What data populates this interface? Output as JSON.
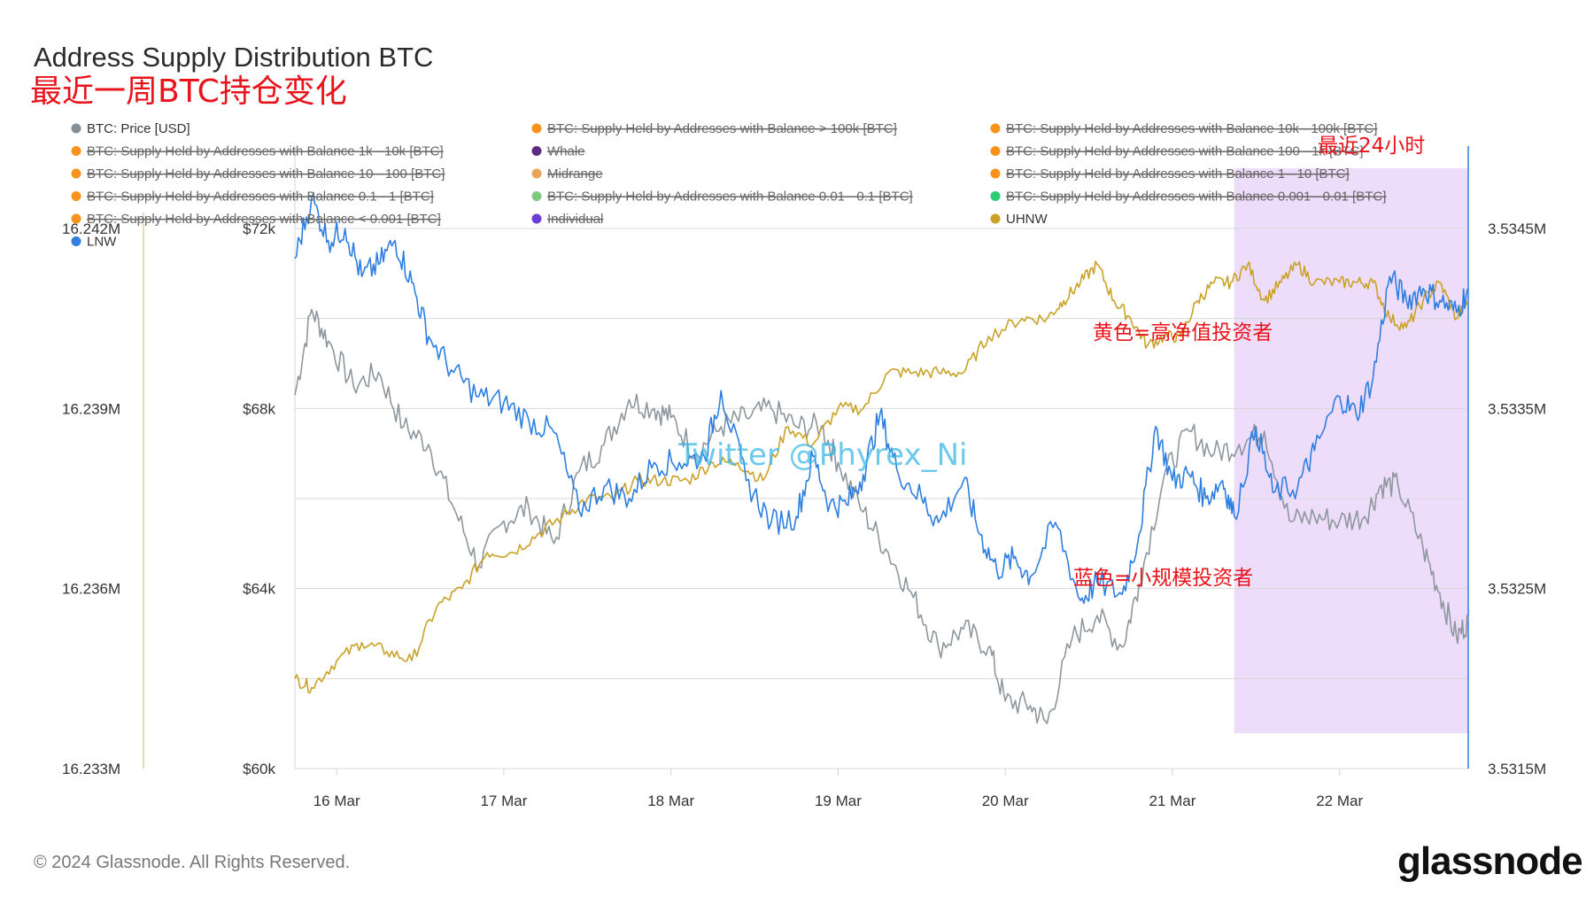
{
  "header": {
    "title": "Address Supply Distribution BTC",
    "subtitle": "最近一周BTC持仓变化"
  },
  "legend": [
    {
      "label": "BTC: Price [USD]",
      "color": "#888f95",
      "active": true
    },
    {
      "label": "BTC: Supply Held by Addresses with Balance > 100k [BTC]",
      "color": "#f7931a",
      "active": false
    },
    {
      "label": "BTC: Supply Held by Addresses with Balance 10k - 100k [BTC]",
      "color": "#f7931a",
      "active": false
    },
    {
      "label": "BTC: Supply Held by Addresses with Balance 1k - 10k [BTC]",
      "color": "#f7931a",
      "active": false
    },
    {
      "label": "Whale",
      "color": "#5b2c83",
      "active": false
    },
    {
      "label": "BTC: Supply Held by Addresses with Balance 100 - 1k [BTC]",
      "color": "#f7931a",
      "active": false
    },
    {
      "label": "BTC: Supply Held by Addresses with Balance 10 - 100 [BTC]",
      "color": "#f7931a",
      "active": false
    },
    {
      "label": "Midrange",
      "color": "#e9a65a",
      "active": false
    },
    {
      "label": "BTC: Supply Held by Addresses with Balance 1 - 10 [BTC]",
      "color": "#f7931a",
      "active": false
    },
    {
      "label": "BTC: Supply Held by Addresses with Balance 0.1 - 1 [BTC]",
      "color": "#f7931a",
      "active": false
    },
    {
      "label": "BTC: Supply Held by Addresses with Balance 0.01 - 0.1 [BTC]",
      "color": "#7fc97f",
      "active": false
    },
    {
      "label": "BTC: Supply Held by Addresses with Balance 0.001 - 0.01 [BTC]",
      "color": "#2ecc71",
      "active": false
    },
    {
      "label": "BTC: Supply Held by Addresses with Balance < 0.001 [BTC]",
      "color": "#f7931a",
      "active": false
    },
    {
      "label": "Individual",
      "color": "#6a3fd6",
      "active": false
    },
    {
      "label": "UHNW",
      "color": "#c9a227",
      "active": true
    },
    {
      "label": "LNW",
      "color": "#2f7fe0",
      "active": true
    }
  ],
  "annotations": {
    "last24h": "最近24小时",
    "yellow_note": "黄色=高净值投资者",
    "blue_note": "蓝色=小规模投资者",
    "watermark": "Twitter @Phyrex_Ni"
  },
  "footer": {
    "copyright": "© 2024 Glassnode. All Rights Reserved.",
    "brand": "glassnode"
  },
  "colors": {
    "price": "#8e979d",
    "uhnw": "#c9a227",
    "lnw": "#2f7fe0",
    "highlight": "#eedcfb",
    "grid": "#d8d8d8",
    "axis_accent": "#e8c9a0"
  },
  "chart_data": {
    "type": "line",
    "x_start_day": 15.75,
    "x_end_day": 22.77,
    "highlight_range_days": [
      21.37,
      22.77
    ],
    "xticks": [
      {
        "day": 16,
        "label": "16 Mar"
      },
      {
        "day": 17,
        "label": "17 Mar"
      },
      {
        "day": 18,
        "label": "18 Mar"
      },
      {
        "day": 19,
        "label": "19 Mar"
      },
      {
        "day": 20,
        "label": "20 Mar"
      },
      {
        "day": 21,
        "label": "21 Mar"
      },
      {
        "day": 22,
        "label": "22 Mar"
      }
    ],
    "axes": {
      "left_outer": {
        "min": 16.233,
        "max": 16.242,
        "ticks": [
          "16.242M",
          "16.239M",
          "16.236M",
          "16.233M"
        ]
      },
      "left_inner": {
        "min": 60000,
        "max": 72000,
        "ticks": [
          "$72k",
          "$68k",
          "$64k",
          "$60k"
        ]
      },
      "right": {
        "min": 3.5315,
        "max": 3.5345,
        "ticks": [
          "3.5345M",
          "3.5335M",
          "3.5325M",
          "3.5315M"
        ]
      }
    },
    "series": [
      {
        "name": "BTC: Price [USD]",
        "axis": "left_inner",
        "points": [
          [
            15.75,
            68300
          ],
          [
            15.85,
            70200
          ],
          [
            15.95,
            69500
          ],
          [
            16.1,
            68500
          ],
          [
            16.25,
            68800
          ],
          [
            16.4,
            67600
          ],
          [
            16.55,
            67200
          ],
          [
            16.7,
            65800
          ],
          [
            16.85,
            64500
          ],
          [
            17.0,
            65500
          ],
          [
            17.15,
            65800
          ],
          [
            17.3,
            65000
          ],
          [
            17.45,
            66600
          ],
          [
            17.6,
            67200
          ],
          [
            17.75,
            68200
          ],
          [
            17.9,
            68000
          ],
          [
            18.0,
            67800
          ],
          [
            18.15,
            67000
          ],
          [
            18.3,
            67600
          ],
          [
            18.45,
            67800
          ],
          [
            18.6,
            68000
          ],
          [
            18.75,
            67600
          ],
          [
            18.9,
            67600
          ],
          [
            19.0,
            66800
          ],
          [
            19.15,
            65700
          ],
          [
            19.3,
            64800
          ],
          [
            19.45,
            63800
          ],
          [
            19.6,
            62700
          ],
          [
            19.75,
            63100
          ],
          [
            19.9,
            62700
          ],
          [
            20.0,
            61500
          ],
          [
            20.15,
            61400
          ],
          [
            20.25,
            61000
          ],
          [
            20.4,
            62900
          ],
          [
            20.55,
            63400
          ],
          [
            20.7,
            62700
          ],
          [
            20.8,
            64100
          ],
          [
            20.95,
            66500
          ],
          [
            21.1,
            67500
          ],
          [
            21.25,
            67000
          ],
          [
            21.4,
            67200
          ],
          [
            21.55,
            67500
          ],
          [
            21.7,
            65500
          ],
          [
            21.85,
            65600
          ],
          [
            22.0,
            65500
          ],
          [
            22.15,
            65600
          ],
          [
            22.25,
            66300
          ],
          [
            22.35,
            66300
          ],
          [
            22.5,
            64900
          ],
          [
            22.6,
            63900
          ],
          [
            22.7,
            62900
          ],
          [
            22.77,
            63300
          ]
        ]
      },
      {
        "name": "UHNW",
        "axis": "right",
        "points": [
          [
            15.75,
            3.532
          ],
          [
            15.85,
            3.53195
          ],
          [
            16.0,
            3.5321
          ],
          [
            16.15,
            3.5322
          ],
          [
            16.3,
            3.53215
          ],
          [
            16.45,
            3.5321
          ],
          [
            16.6,
            3.5324
          ],
          [
            16.75,
            3.5325
          ],
          [
            16.9,
            3.5327
          ],
          [
            17.05,
            3.5327
          ],
          [
            17.2,
            3.5328
          ],
          [
            17.35,
            3.5329
          ],
          [
            17.5,
            3.533
          ],
          [
            17.65,
            3.533
          ],
          [
            17.8,
            3.5331
          ],
          [
            17.95,
            3.5331
          ],
          [
            18.1,
            3.5331
          ],
          [
            18.25,
            3.5332
          ],
          [
            18.4,
            3.5332
          ],
          [
            18.55,
            3.5331
          ],
          [
            18.7,
            3.5334
          ],
          [
            18.85,
            3.5333
          ],
          [
            19.0,
            3.5335
          ],
          [
            19.15,
            3.5335
          ],
          [
            19.3,
            3.5337
          ],
          [
            19.45,
            3.5337
          ],
          [
            19.6,
            3.5337
          ],
          [
            19.75,
            3.5337
          ],
          [
            19.9,
            3.5339
          ],
          [
            20.1,
            3.534
          ],
          [
            20.25,
            3.534
          ],
          [
            20.35,
            3.5341
          ],
          [
            20.45,
            3.5342
          ],
          [
            20.55,
            3.5343
          ],
          [
            20.65,
            3.5341
          ],
          [
            20.75,
            3.534
          ],
          [
            20.85,
            3.53385
          ],
          [
            20.95,
            3.5339
          ],
          [
            21.05,
            3.5339
          ],
          [
            21.15,
            3.5341
          ],
          [
            21.25,
            3.5342
          ],
          [
            21.35,
            3.5342
          ],
          [
            21.45,
            3.5343
          ],
          [
            21.55,
            3.5341
          ],
          [
            21.65,
            3.5342
          ],
          [
            21.75,
            3.5343
          ],
          [
            21.85,
            3.5342
          ],
          [
            22.0,
            3.5342
          ],
          [
            22.1,
            3.5342
          ],
          [
            22.2,
            3.5342
          ],
          [
            22.3,
            3.534
          ],
          [
            22.4,
            3.53395
          ],
          [
            22.5,
            3.5341
          ],
          [
            22.6,
            3.5342
          ],
          [
            22.7,
            3.534
          ],
          [
            22.77,
            3.5341
          ]
        ]
      },
      {
        "name": "LNW",
        "axis": "left_outer",
        "points": [
          [
            15.75,
            16.2415
          ],
          [
            15.85,
            16.2425
          ],
          [
            15.95,
            16.2418
          ],
          [
            16.05,
            16.242
          ],
          [
            16.15,
            16.2412
          ],
          [
            16.25,
            16.2414
          ],
          [
            16.35,
            16.2418
          ],
          [
            16.45,
            16.2411
          ],
          [
            16.55,
            16.2402
          ],
          [
            16.7,
            16.2396
          ],
          [
            16.85,
            16.2392
          ],
          [
            17.0,
            16.2391
          ],
          [
            17.15,
            16.2388
          ],
          [
            17.3,
            16.2386
          ],
          [
            17.45,
            16.2373
          ],
          [
            17.6,
            16.2377
          ],
          [
            17.75,
            16.2375
          ],
          [
            17.9,
            16.2381
          ],
          [
            18.05,
            16.2381
          ],
          [
            18.2,
            16.2382
          ],
          [
            18.3,
            16.2393
          ],
          [
            18.45,
            16.2378
          ],
          [
            18.6,
            16.2371
          ],
          [
            18.75,
            16.2372
          ],
          [
            18.85,
            16.2382
          ],
          [
            18.95,
            16.2374
          ],
          [
            19.05,
            16.2374
          ],
          [
            19.15,
            16.2379
          ],
          [
            19.25,
            16.2389
          ],
          [
            19.35,
            16.238
          ],
          [
            19.5,
            16.2375
          ],
          [
            19.6,
            16.2371
          ],
          [
            19.75,
            16.2378
          ],
          [
            19.85,
            16.2369
          ],
          [
            19.95,
            16.2363
          ],
          [
            20.05,
            16.2365
          ],
          [
            20.15,
            16.2362
          ],
          [
            20.3,
            16.2371
          ],
          [
            20.45,
            16.2358
          ],
          [
            20.55,
            16.2361
          ],
          [
            20.7,
            16.2359
          ],
          [
            20.8,
            16.2369
          ],
          [
            20.9,
            16.2387
          ],
          [
            21.0,
            16.2378
          ],
          [
            21.1,
            16.2379
          ],
          [
            21.2,
            16.2375
          ],
          [
            21.3,
            16.2378
          ],
          [
            21.37,
            16.2372
          ],
          [
            21.5,
            16.2387
          ],
          [
            21.6,
            16.2376
          ],
          [
            21.75,
            16.2377
          ],
          [
            21.85,
            16.2383
          ],
          [
            22.0,
            16.2392
          ],
          [
            22.1,
            16.2389
          ],
          [
            22.2,
            16.2395
          ],
          [
            22.3,
            16.2412
          ],
          [
            22.4,
            16.2408
          ],
          [
            22.5,
            16.241
          ],
          [
            22.6,
            16.2408
          ],
          [
            22.7,
            16.2406
          ],
          [
            22.77,
            16.241
          ]
        ]
      }
    ]
  }
}
